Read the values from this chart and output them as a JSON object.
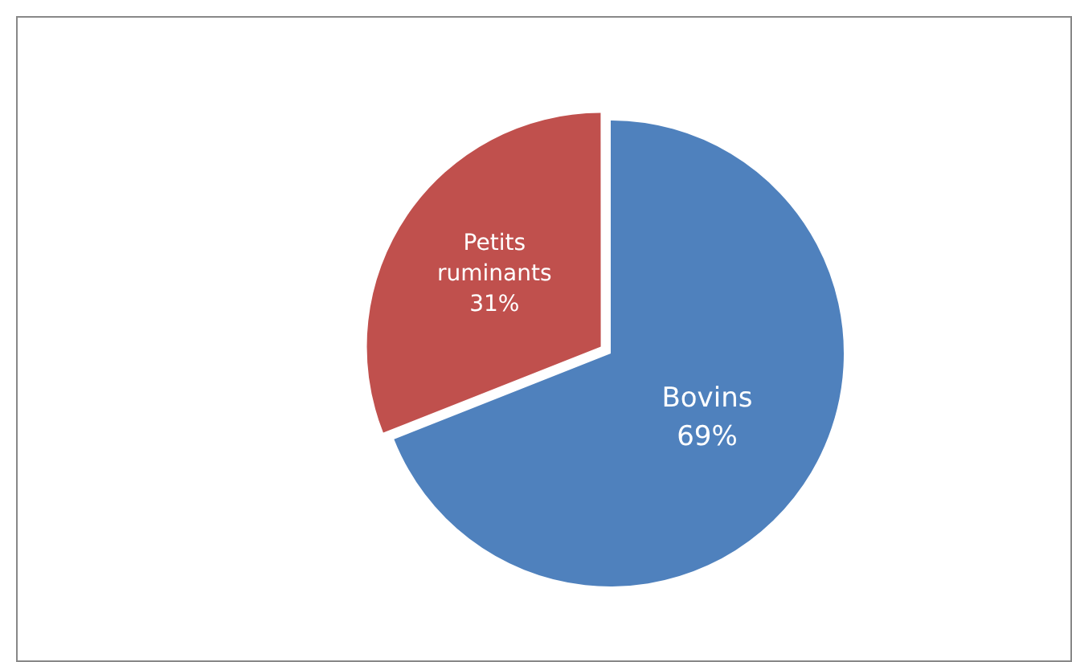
{
  "chart_data": {
    "type": "pie",
    "categories": [
      "Bovins",
      "Petits ruminants"
    ],
    "values": [
      69,
      31
    ],
    "colors": [
      "#4f81bd",
      "#c0504d"
    ],
    "value_labels": [
      "69%",
      "31%"
    ],
    "legend": false
  }
}
